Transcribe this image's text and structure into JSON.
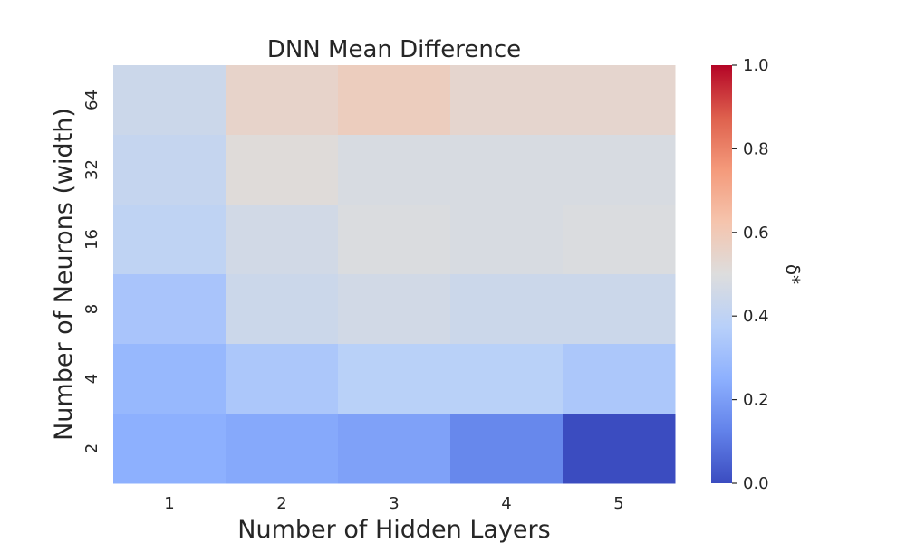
{
  "chart_data": {
    "type": "heatmap",
    "title": "DNN Mean Difference",
    "xlabel": "Number of Hidden Layers",
    "ylabel": "Number of Neurons (width)",
    "x_categories": [
      "1",
      "2",
      "3",
      "4",
      "5"
    ],
    "y_categories": [
      "64",
      "32",
      "16",
      "8",
      "4",
      "2"
    ],
    "values": [
      [
        0.44,
        0.55,
        0.58,
        0.54,
        0.54
      ],
      [
        0.42,
        0.51,
        0.48,
        0.48,
        0.48
      ],
      [
        0.4,
        0.46,
        0.49,
        0.48,
        0.49
      ],
      [
        0.33,
        0.44,
        0.46,
        0.44,
        0.44
      ],
      [
        0.28,
        0.34,
        0.38,
        0.38,
        0.34
      ],
      [
        0.25,
        0.23,
        0.21,
        0.14,
        0.0
      ]
    ],
    "colormap": "coolwarm",
    "vmin": 0.0,
    "vmax": 1.0,
    "colorbar": {
      "label": "δ*",
      "ticks": [
        "0.0",
        "0.2",
        "0.4",
        "0.6",
        "0.8",
        "1.0"
      ],
      "tick_values": [
        0.0,
        0.2,
        0.4,
        0.6,
        0.8,
        1.0
      ]
    }
  }
}
